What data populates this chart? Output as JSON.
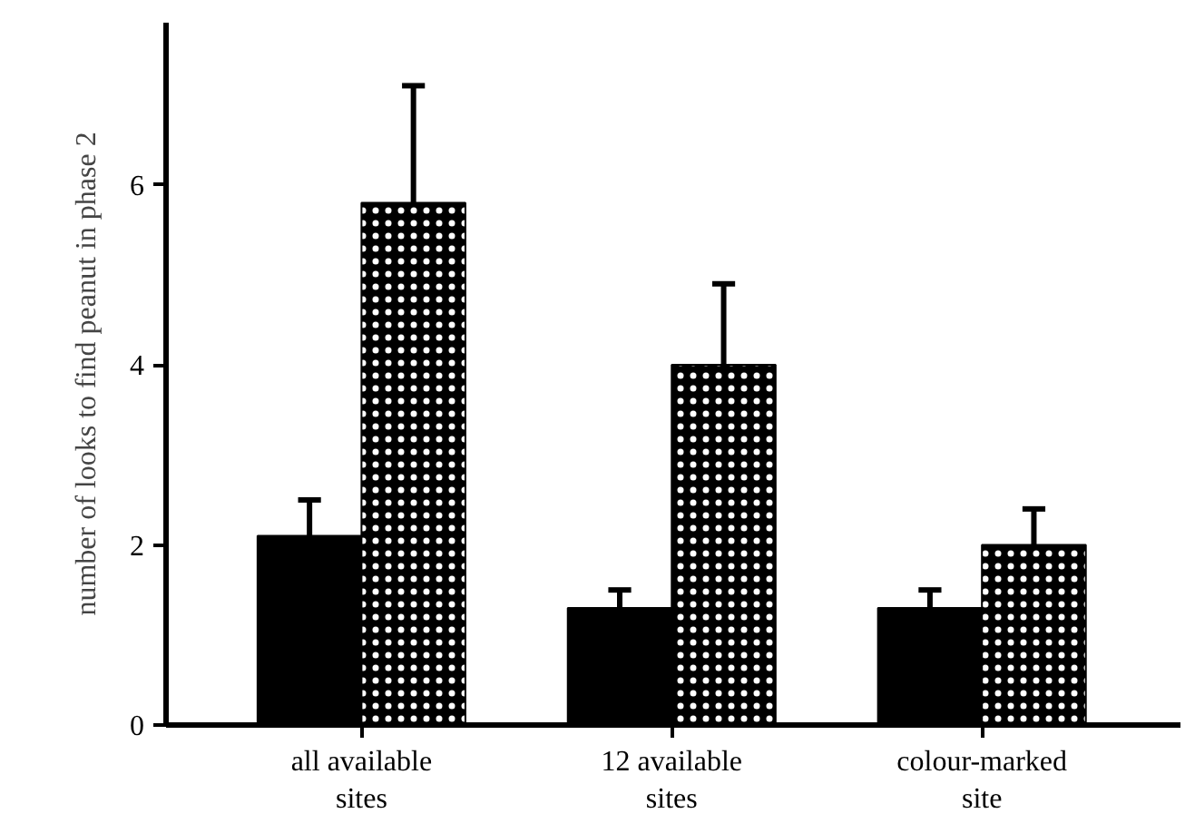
{
  "chart_data": {
    "type": "bar",
    "ylabel": "number of looks to find peanut in phase 2",
    "categories": [
      "all available sites",
      "12 available sites",
      "colour-marked site"
    ],
    "series": [
      {
        "color": "#000000",
        "values": [
          2.1,
          1.3,
          1.3
        ],
        "errors": [
          [
            2.1,
            2.5
          ],
          [
            1.3,
            1.5
          ],
          [
            1.3,
            1.5
          ]
        ]
      },
      {
        "color": "#000000",
        "values": [
          5.8,
          4.0,
          2.0
        ],
        "errors": [
          [
            5.8,
            7.1
          ],
          [
            4.0,
            4.9
          ],
          [
            2.0,
            2.4
          ]
        ]
      }
    ],
    "ylim": [
      0,
      7.8
    ],
    "yticks": [
      0,
      2,
      4,
      6
    ],
    "grid": false
  }
}
